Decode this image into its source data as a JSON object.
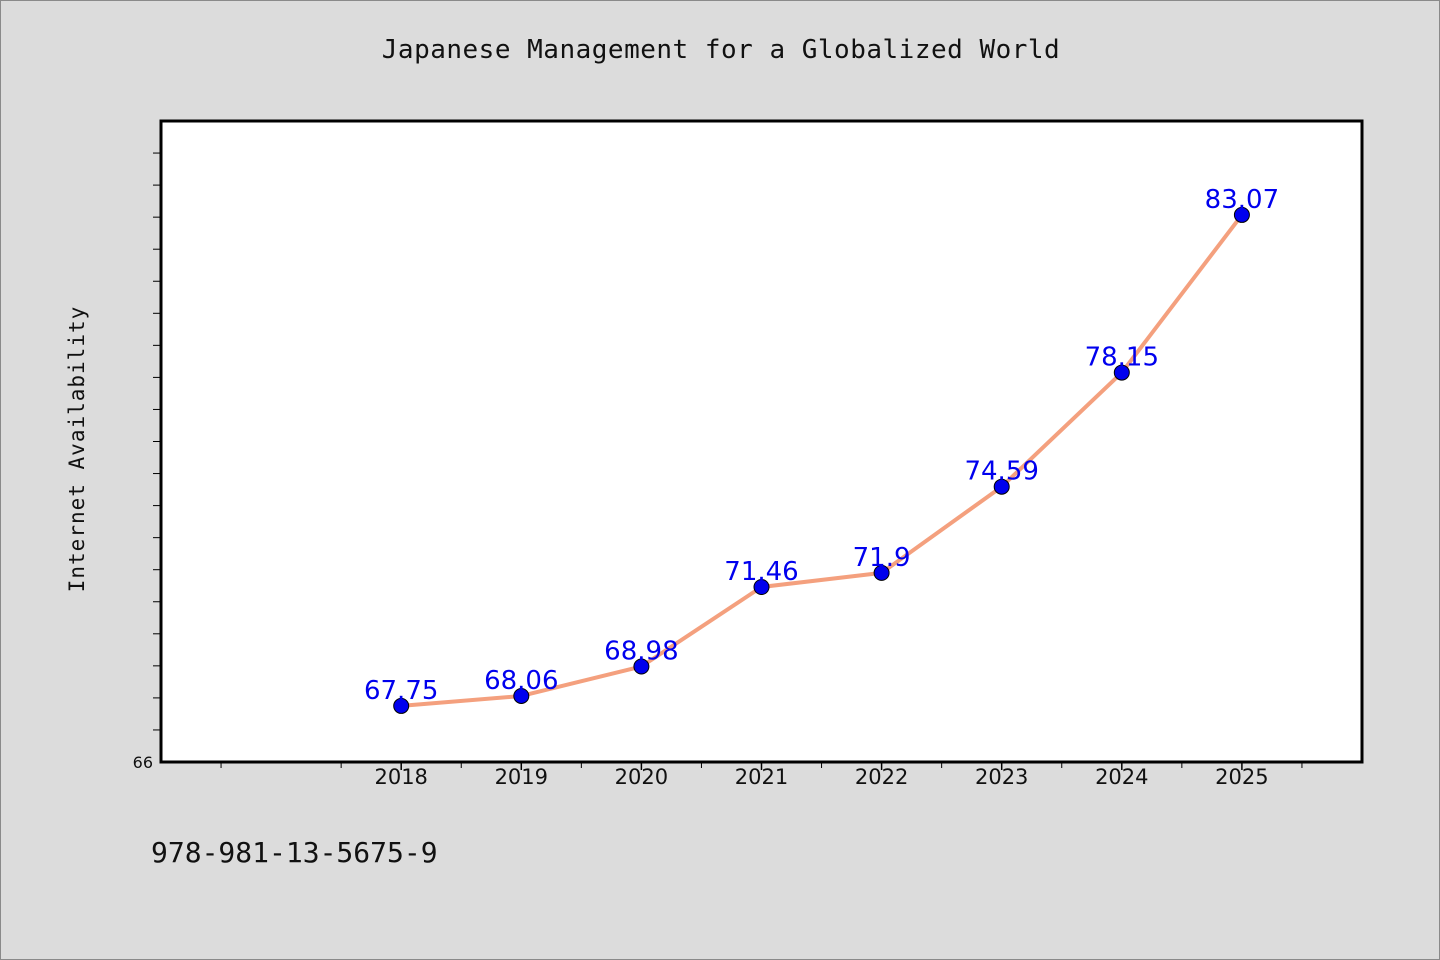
{
  "chart_data": {
    "type": "line",
    "title": "Japanese Management for a Globalized World",
    "xlabel": "",
    "ylabel": "Internet Availability",
    "x": [
      "2018",
      "2019",
      "2020",
      "2021",
      "2022",
      "2023",
      "2024",
      "2025"
    ],
    "series": [
      {
        "values": [
          67.75,
          68.06,
          68.98,
          71.46,
          71.9,
          74.59,
          78.15,
          83.07
        ],
        "data_labels": [
          "67.75",
          "68.06",
          "68.98",
          "71.46",
          "71.9",
          "74.59",
          "78.15",
          "83.07"
        ]
      }
    ],
    "y_tick_labels": [
      "66"
    ],
    "ylim": [
      66,
      86
    ],
    "x_category_range": [
      2016,
      2026
    ],
    "grid": false,
    "legend": "none",
    "colors": {
      "line": "#f4a07e",
      "marker": "#0000ee",
      "label": "#0000ee",
      "plot_background": "#ffffff",
      "page_background": "#dcdcdc"
    }
  },
  "footer": {
    "isbn": "978-981-13-5675-9"
  }
}
